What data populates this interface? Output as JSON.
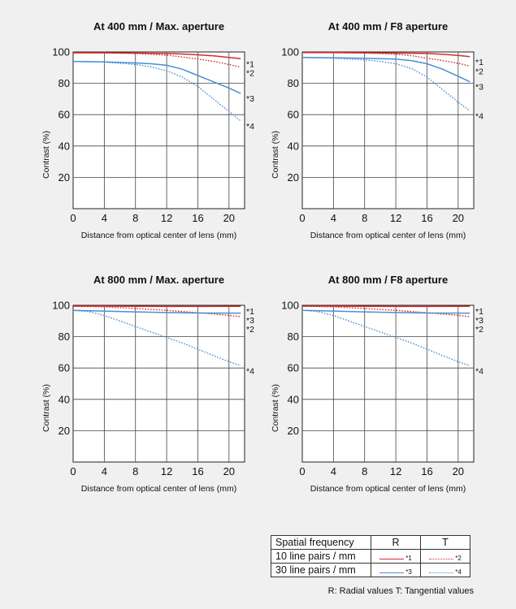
{
  "chart_data": [
    {
      "type": "line",
      "title": "At 400 mm / Max. aperture",
      "xlabel": "Distance from optical center of lens (mm)",
      "ylabel": "Contrast (%)",
      "xlim": [
        0,
        22
      ],
      "ylim": [
        0,
        100
      ],
      "xticks": [
        0,
        4,
        8,
        12,
        16,
        20
      ],
      "yticks": [
        20,
        40,
        60,
        80,
        100
      ],
      "grid": true,
      "series": [
        {
          "name": "*1",
          "frequency": "10 line pairs / mm",
          "orientation": "R",
          "color": "#d62b2b",
          "style": "solid",
          "x": [
            0,
            4,
            8,
            12,
            14,
            16,
            18,
            20,
            21.5
          ],
          "y": [
            99.5,
            99.5,
            99.3,
            99,
            98.7,
            98.2,
            97.5,
            96.5,
            95.7
          ]
        },
        {
          "name": "*2",
          "frequency": "10 line pairs / mm",
          "orientation": "T",
          "color": "#d62b2b",
          "style": "dotted",
          "x": [
            0,
            4,
            8,
            12,
            14,
            16,
            18,
            20,
            21.5
          ],
          "y": [
            99.5,
            99.4,
            99.0,
            98.0,
            96.8,
            95.5,
            94.0,
            92.0,
            90.3
          ]
        },
        {
          "name": "*3",
          "frequency": "30 line pairs / mm",
          "orientation": "R",
          "color": "#4a8fd6",
          "style": "solid",
          "x": [
            0,
            4,
            8,
            10,
            12,
            14,
            16,
            18,
            20,
            21.5
          ],
          "y": [
            94,
            93.7,
            93,
            92.5,
            91.5,
            89,
            85,
            81,
            77,
            73.5
          ]
        },
        {
          "name": "*4",
          "frequency": "30 line pairs / mm",
          "orientation": "T",
          "color": "#4a8fd6",
          "style": "dotted",
          "x": [
            0,
            4,
            8,
            10,
            12,
            14,
            16,
            18,
            20,
            21.5
          ],
          "y": [
            94,
            93.5,
            92,
            90.5,
            88,
            84,
            78,
            70,
            62,
            56
          ]
        }
      ]
    },
    {
      "type": "line",
      "title": "At 400 mm / F8 aperture",
      "xlabel": "Distance from optical center of lens (mm)",
      "ylabel": "Contrast (%)",
      "xlim": [
        0,
        22
      ],
      "ylim": [
        0,
        100
      ],
      "xticks": [
        0,
        4,
        8,
        12,
        16,
        20
      ],
      "yticks": [
        20,
        40,
        60,
        80,
        100
      ],
      "grid": true,
      "series": [
        {
          "name": "*1",
          "frequency": "10 line pairs / mm",
          "orientation": "R",
          "color": "#d62b2b",
          "style": "solid",
          "x": [
            0,
            4,
            8,
            12,
            16,
            18,
            20,
            21.5
          ],
          "y": [
            99.6,
            99.6,
            99.5,
            99.3,
            99,
            98.5,
            97.8,
            97
          ]
        },
        {
          "name": "*2",
          "frequency": "10 line pairs / mm",
          "orientation": "T",
          "color": "#d62b2b",
          "style": "dotted",
          "x": [
            0,
            4,
            8,
            12,
            14,
            16,
            18,
            20,
            21.5
          ],
          "y": [
            99.6,
            99.5,
            99.3,
            98.6,
            97.6,
            96,
            94.5,
            92.8,
            91
          ]
        },
        {
          "name": "*3",
          "frequency": "30 line pairs / mm",
          "orientation": "R",
          "color": "#4a8fd6",
          "style": "solid",
          "x": [
            0,
            4,
            8,
            12,
            14,
            16,
            18,
            20,
            21.5
          ],
          "y": [
            96.5,
            96.3,
            96,
            95.5,
            94.5,
            92.5,
            89,
            84.5,
            81
          ]
        },
        {
          "name": "*4",
          "frequency": "30 line pairs / mm",
          "orientation": "T",
          "color": "#4a8fd6",
          "style": "dotted",
          "x": [
            0,
            4,
            8,
            10,
            12,
            14,
            16,
            18,
            20,
            21.5
          ],
          "y": [
            96.5,
            96,
            95,
            94,
            92.5,
            89.5,
            84,
            76,
            68,
            62.5
          ]
        }
      ]
    },
    {
      "type": "line",
      "title": "At 800 mm / Max. aperture",
      "xlabel": "Distance from optical center of lens (mm)",
      "ylabel": "Contrast (%)",
      "xlim": [
        0,
        22
      ],
      "ylim": [
        0,
        100
      ],
      "xticks": [
        0,
        4,
        8,
        12,
        16,
        20
      ],
      "yticks": [
        20,
        40,
        60,
        80,
        100
      ],
      "grid": true,
      "series": [
        {
          "name": "*1",
          "frequency": "10 line pairs / mm",
          "orientation": "R",
          "color": "#d62b2b",
          "style": "solid",
          "x": [
            0,
            4,
            8,
            12,
            16,
            20,
            21.5
          ],
          "y": [
            99.5,
            99.5,
            99.4,
            99.3,
            99.3,
            99.4,
            99.4
          ]
        },
        {
          "name": "*2",
          "frequency": "10 line pairs / mm",
          "orientation": "T",
          "color": "#d62b2b",
          "style": "dotted",
          "x": [
            0,
            4,
            8,
            12,
            16,
            20,
            21.5
          ],
          "y": [
            99.5,
            99,
            98,
            96.8,
            95.3,
            93.6,
            92.8
          ]
        },
        {
          "name": "*3",
          "frequency": "30 line pairs / mm",
          "orientation": "R",
          "color": "#4a8fd6",
          "style": "solid",
          "x": [
            0,
            4,
            8,
            12,
            16,
            20,
            21.5
          ],
          "y": [
            96.8,
            96.3,
            95.8,
            95.4,
            95.1,
            95,
            95
          ]
        },
        {
          "name": "*4",
          "frequency": "30 line pairs / mm",
          "orientation": "T",
          "color": "#4a8fd6",
          "style": "dotted",
          "x": [
            0,
            2,
            4,
            6,
            8,
            10,
            12,
            14,
            16,
            18,
            20,
            21.5
          ],
          "y": [
            96.8,
            96,
            93.5,
            90,
            86.5,
            83,
            79.5,
            76,
            72,
            68,
            64,
            61.5
          ]
        }
      ]
    },
    {
      "type": "line",
      "title": "At 800 mm / F8 aperture",
      "xlabel": "Distance from optical center of lens (mm)",
      "ylabel": "Contrast (%)",
      "xlim": [
        0,
        22
      ],
      "ylim": [
        0,
        100
      ],
      "xticks": [
        0,
        4,
        8,
        12,
        16,
        20
      ],
      "yticks": [
        20,
        40,
        60,
        80,
        100
      ],
      "grid": true,
      "series": [
        {
          "name": "*1",
          "frequency": "10 line pairs / mm",
          "orientation": "R",
          "color": "#d62b2b",
          "style": "solid",
          "x": [
            0,
            4,
            8,
            12,
            16,
            20,
            21.5
          ],
          "y": [
            99.5,
            99.5,
            99.4,
            99.3,
            99.3,
            99.4,
            99.4
          ]
        },
        {
          "name": "*2",
          "frequency": "10 line pairs / mm",
          "orientation": "T",
          "color": "#d62b2b",
          "style": "dotted",
          "x": [
            0,
            4,
            8,
            12,
            16,
            20,
            21.5
          ],
          "y": [
            99.5,
            99,
            98,
            96.8,
            95.3,
            93.6,
            92.8
          ]
        },
        {
          "name": "*3",
          "frequency": "30 line pairs / mm",
          "orientation": "R",
          "color": "#4a8fd6",
          "style": "solid",
          "x": [
            0,
            4,
            8,
            12,
            16,
            20,
            21.5
          ],
          "y": [
            96.8,
            96.3,
            95.8,
            95.4,
            95.1,
            95,
            95
          ]
        },
        {
          "name": "*4",
          "frequency": "30 line pairs / mm",
          "orientation": "T",
          "color": "#4a8fd6",
          "style": "dotted",
          "x": [
            0,
            2,
            4,
            6,
            8,
            10,
            12,
            14,
            16,
            18,
            20,
            21.5
          ],
          "y": [
            96.8,
            96,
            93.5,
            90,
            86.5,
            83,
            79.5,
            76,
            72,
            68,
            64,
            61.5
          ]
        }
      ]
    }
  ],
  "legend": {
    "header": {
      "label": "Spatial frequency",
      "r": "R",
      "t": "T"
    },
    "rows": [
      {
        "label": "10 line pairs / mm",
        "r_note": "*1",
        "t_note": "*2",
        "color": "#d62b2b"
      },
      {
        "label": "30 line pairs / mm",
        "r_note": "*3",
        "t_note": "*4",
        "color": "#4a8fd6"
      }
    ],
    "footnote": "R: Radial values  T: Tangential values"
  },
  "colors": {
    "background": "#f0f0f0",
    "plot_bg": "#ffffff",
    "red": "#d62b2b",
    "blue": "#4a8fd6"
  }
}
